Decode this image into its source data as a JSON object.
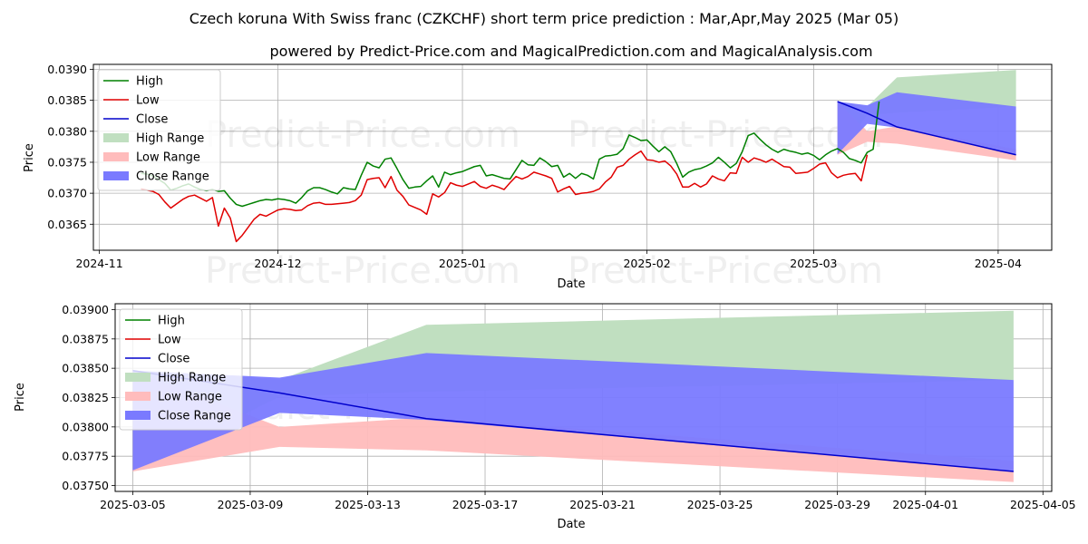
{
  "title": "Czech koruna With Swiss franc (CZKCHF) short term price prediction : Mar,Apr,May 2025 (Mar 05)",
  "subtitle": "powered by Predict-Price.com and MagicalPrediction.com and MagicalAnalysis.com",
  "watermark": "Predict-Price.com",
  "colors": {
    "high": "#008000",
    "low": "#e00000",
    "close": "#0000cc",
    "high_range": "#c0dfc0",
    "low_range": "#ffbcbc",
    "close_range": "#7a7aff"
  },
  "chart_data": [
    {
      "type": "line",
      "xlabel": "Date",
      "ylabel": "Price",
      "xlim": [
        "2024-10-31",
        "2025-04-10"
      ],
      "ylim": [
        0.03608,
        0.03908
      ],
      "xticks": [
        {
          "date": "2024-11-01",
          "label": "2024-11"
        },
        {
          "date": "2024-12-01",
          "label": "2024-12"
        },
        {
          "date": "2025-01-01",
          "label": "2025-01"
        },
        {
          "date": "2025-02-01",
          "label": "2025-02"
        },
        {
          "date": "2025-03-01",
          "label": "2025-03"
        },
        {
          "date": "2025-04-01",
          "label": "2025-04"
        }
      ],
      "yticks": [
        {
          "value": 0.0365,
          "label": "0.0365"
        },
        {
          "value": 0.037,
          "label": "0.0370"
        },
        {
          "value": 0.0375,
          "label": "0.0375"
        },
        {
          "value": 0.038,
          "label": "0.0380"
        },
        {
          "value": 0.0385,
          "label": "0.0385"
        },
        {
          "value": 0.039,
          "label": "0.0390"
        }
      ],
      "legend": [
        "High",
        "Low",
        "Close",
        "High Range",
        "Low Range",
        "Close Range"
      ],
      "legend_position": "top-left",
      "history_start": "2024-11-08",
      "series": [
        {
          "name": "High",
          "values": [
            0.03732,
            0.03731,
            0.03728,
            0.03722,
            0.03716,
            0.03705,
            0.03708,
            0.03712,
            0.03715,
            0.0371,
            0.03706,
            0.03704,
            0.03706,
            0.03703,
            0.03704,
            0.03692,
            0.03682,
            0.03679,
            0.03682,
            0.03685,
            0.03688,
            0.0369,
            0.03689,
            0.03691,
            0.0369,
            0.03688,
            0.03684,
            0.03693,
            0.03704,
            0.03709,
            0.03709,
            0.03706,
            0.03702,
            0.03699,
            0.03709,
            0.03707,
            0.03706,
            0.03729,
            0.0375,
            0.03744,
            0.03741,
            0.03755,
            0.03757,
            0.0374,
            0.03722,
            0.03708,
            0.0371,
            0.03711,
            0.0372,
            0.03728,
            0.0371,
            0.03734,
            0.0373,
            0.03733,
            0.03735,
            0.03739,
            0.03743,
            0.03745,
            0.03728,
            0.0373,
            0.03727,
            0.03724,
            0.03723,
            0.03738,
            0.03753,
            0.03746,
            0.03745,
            0.03757,
            0.03751,
            0.03743,
            0.03745,
            0.03726,
            0.03732,
            0.03724,
            0.03732,
            0.03729,
            0.03723,
            0.03755,
            0.0376,
            0.03761,
            0.03763,
            0.03772,
            0.03794,
            0.0379,
            0.03785,
            0.03786,
            0.03776,
            0.03767,
            0.03775,
            0.03767,
            0.03748,
            0.03726,
            0.03734,
            0.03738,
            0.0374,
            0.03744,
            0.03749,
            0.03758,
            0.0375,
            0.03741,
            0.03748,
            0.03767,
            0.03793,
            0.03797,
            0.03787,
            0.03778,
            0.03771,
            0.03766,
            0.03771,
            0.03768,
            0.03766,
            0.03763,
            0.03765,
            0.03761,
            0.03754,
            0.03762,
            0.03768,
            0.03772,
            0.03766,
            0.03756,
            0.03753,
            0.03749,
            0.03766,
            0.03771,
            0.03848
          ]
        },
        {
          "name": "Low",
          "values": [
            0.03707,
            0.03705,
            0.03703,
            0.03698,
            0.03686,
            0.03676,
            0.03683,
            0.0369,
            0.03695,
            0.03697,
            0.03692,
            0.03687,
            0.03693,
            0.03647,
            0.03676,
            0.0366,
            0.03622,
            0.03632,
            0.03645,
            0.03658,
            0.03666,
            0.03663,
            0.03668,
            0.03673,
            0.03675,
            0.03674,
            0.03672,
            0.03673,
            0.0368,
            0.03684,
            0.03685,
            0.03682,
            0.03682,
            0.03683,
            0.03684,
            0.03685,
            0.03688,
            0.03697,
            0.03722,
            0.03724,
            0.03725,
            0.03709,
            0.03727,
            0.03705,
            0.03695,
            0.03681,
            0.03677,
            0.03673,
            0.03666,
            0.03699,
            0.03694,
            0.03701,
            0.03717,
            0.03713,
            0.03711,
            0.03715,
            0.03719,
            0.03711,
            0.03708,
            0.03713,
            0.0371,
            0.03706,
            0.03717,
            0.03727,
            0.03723,
            0.03727,
            0.03734,
            0.03731,
            0.03728,
            0.03724,
            0.03702,
            0.03707,
            0.03711,
            0.03698,
            0.037,
            0.03701,
            0.03703,
            0.03707,
            0.03718,
            0.03726,
            0.03742,
            0.03745,
            0.03755,
            0.03762,
            0.03768,
            0.03754,
            0.03753,
            0.0375,
            0.03752,
            0.03744,
            0.03731,
            0.0371,
            0.0371,
            0.03716,
            0.0371,
            0.03715,
            0.03728,
            0.03723,
            0.0372,
            0.03733,
            0.03732,
            0.03758,
            0.0375,
            0.03757,
            0.03754,
            0.0375,
            0.03755,
            0.03749,
            0.03743,
            0.03742,
            0.03732,
            0.03733,
            0.03734,
            0.0374,
            0.03747,
            0.03749,
            0.03733,
            0.03725,
            0.03729,
            0.03731,
            0.03732,
            0.0372,
            0.03762
          ]
        }
      ],
      "forecast_start": "2025-03-05"
    },
    {
      "type": "line",
      "xlabel": "Date",
      "ylabel": "Price",
      "xlim": [
        "2025-03-04.4",
        "2025-04-05.3"
      ],
      "ylim": [
        0.03745,
        0.03905
      ],
      "xticks": [
        {
          "date": "2025-03-05",
          "label": "2025-03-05"
        },
        {
          "date": "2025-03-09",
          "label": "2025-03-09"
        },
        {
          "date": "2025-03-13",
          "label": "2025-03-13"
        },
        {
          "date": "2025-03-17",
          "label": "2025-03-17"
        },
        {
          "date": "2025-03-21",
          "label": "2025-03-21"
        },
        {
          "date": "2025-03-25",
          "label": "2025-03-25"
        },
        {
          "date": "2025-03-29",
          "label": "2025-03-29"
        },
        {
          "date": "2025-04-01",
          "label": "2025-04-01"
        },
        {
          "date": "2025-04-05",
          "label": "2025-04-05"
        }
      ],
      "yticks": [
        {
          "value": 0.0375,
          "label": "0.03750"
        },
        {
          "value": 0.03775,
          "label": "0.03775"
        },
        {
          "value": 0.038,
          "label": "0.03800"
        },
        {
          "value": 0.03825,
          "label": "0.03825"
        },
        {
          "value": 0.0385,
          "label": "0.03850"
        },
        {
          "value": 0.03875,
          "label": "0.03875"
        },
        {
          "value": 0.039,
          "label": "0.03900"
        }
      ],
      "legend": [
        "High",
        "Low",
        "Close",
        "High Range",
        "Low Range",
        "Close Range"
      ],
      "legend_position": "top-left"
    }
  ],
  "forecast": {
    "dates": [
      "2025-03-05",
      "2025-03-10",
      "2025-03-15",
      "2025-04-04"
    ],
    "high_range": {
      "upper": [
        0.03848,
        0.0384,
        0.03887,
        0.03899
      ],
      "lower": [
        0.03763,
        0.03826,
        0.0383,
        0.0384
      ]
    },
    "low_range": {
      "upper": [
        0.03848,
        0.038,
        0.03808,
        0.03771
      ],
      "lower": [
        0.03762,
        0.03783,
        0.0378,
        0.03753
      ]
    },
    "close_range": {
      "upper": [
        0.03848,
        0.03842,
        0.03863,
        0.0384
      ],
      "lower": [
        0.03763,
        0.03812,
        0.03806,
        0.03762
      ]
    },
    "close": [
      0.03848,
      0.03829,
      0.03807,
      0.03762
    ]
  }
}
